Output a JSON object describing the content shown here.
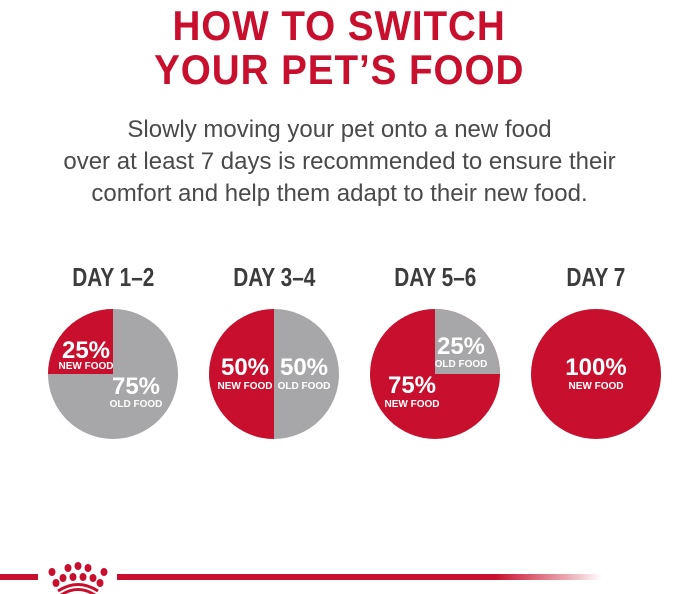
{
  "title": {
    "line1": "HOW TO SWITCH",
    "line2": "YOUR PET’S FOOD"
  },
  "intro": {
    "line1": "Slowly moving your pet onto a new food",
    "line2": "over at least 7 days is recommended to ensure their",
    "line3": "comfort and help them adapt to their new food."
  },
  "colors": {
    "new_food": "#c8102e",
    "old_food": "#a7a7a9",
    "heading_red": "#c8102e",
    "text": "#4a4a4a"
  },
  "stages": [
    {
      "day": "DAY 1–2",
      "new_pct": 25,
      "new_text": "25%",
      "new_label": "NEW FOOD",
      "old_text": "75%",
      "old_label": "OLD FOOD"
    },
    {
      "day": "DAY 3–4",
      "new_pct": 50,
      "new_text": "50%",
      "new_label": "NEW FOOD",
      "old_text": "50%",
      "old_label": "OLD FOOD"
    },
    {
      "day": "DAY 5–6",
      "new_pct": 75,
      "new_text": "75%",
      "new_label": "NEW FOOD",
      "old_text": "25%",
      "old_label": "OLD FOOD"
    },
    {
      "day": "DAY 7",
      "new_pct": 100,
      "new_text": "100%",
      "new_label": "NEW FOOD"
    }
  ],
  "logo": {
    "icon": "crown-icon",
    "brand": "Royal Canin"
  }
}
